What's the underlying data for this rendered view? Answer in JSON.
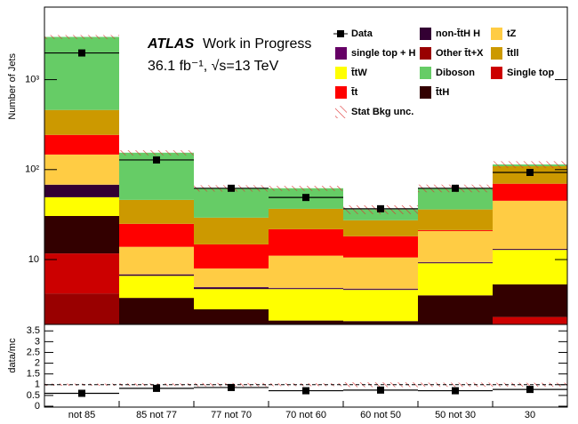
{
  "chart_data": {
    "type": "stacked-bar-log",
    "atlas_label": "ATLAS",
    "subtitle_label": "Work in Progress",
    "lumi_label": "36.1 fb⁻¹, √s=13 TeV",
    "y_label": "Number of Jets",
    "categories": [
      "not 85",
      "85 not 77",
      "77 not 70",
      "70 not 60",
      "60 not 50",
      "50 not 30",
      "30"
    ],
    "ylim": [
      1.9,
      6400
    ],
    "log_scale": true,
    "yticks": [
      10,
      {
        "value": 100,
        "label": "10²"
      },
      {
        "value": 1000,
        "label": "10³"
      }
    ],
    "series": [
      {
        "name": "Other t̄t+X",
        "color": "#990000",
        "values": [
          4.2,
          0.3,
          0.2,
          0.1,
          0.1,
          0.2,
          0.3
        ]
      },
      {
        "name": "Single top",
        "color": "#cc0000",
        "values": [
          7.5,
          0.5,
          0.3,
          0.1,
          0.1,
          0.3,
          2.0
        ]
      },
      {
        "name": "t̄tH",
        "color": "#330000",
        "values": [
          18.8,
          2.95,
          2.3,
          1.9,
          1.87,
          3.5,
          3.0
        ]
      },
      {
        "name": "t̄tW",
        "color": "#ffff00",
        "values": [
          18.8,
          2.85,
          1.9,
          2.6,
          2.53,
          5.1,
          7.5
        ]
      },
      {
        "name": "non-t̄tH H",
        "color": "#330033",
        "values": [
          18.6,
          0.2,
          0.2,
          0.1,
          0.1,
          0.2,
          0.3
        ]
      },
      {
        "name": "single top + H",
        "color": "#660066",
        "values": [
          0.1,
          0.05,
          0.05,
          0.05,
          0.05,
          0.05,
          0.05
        ]
      },
      {
        "name": "tZ",
        "color": "#ffcc44",
        "values": [
          79,
          7.0,
          3.0,
          6.2,
          5.8,
          11.4,
          31.9
        ]
      },
      {
        "name": "t̄t",
        "color": "#ff0000",
        "values": [
          96,
          11.1,
          6.8,
          10.7,
          7.6,
          0.5,
          24.6
        ]
      },
      {
        "name": "t̄tll",
        "color": "#cc9900",
        "values": [
          217,
          21.1,
          14.5,
          14.9,
          9.2,
          14.8,
          39.4
        ]
      },
      {
        "name": "Diboson",
        "color": "#66cc66",
        "values": [
          2525,
          108,
          32.8,
          25.4,
          8.7,
          26,
          5
        ]
      }
    ],
    "data": {
      "name": "Data",
      "color": "#000000",
      "values": [
        1980,
        128,
        62,
        49,
        36.7,
        62,
        93
      ]
    },
    "uncertainty": {
      "name": "Stat Bkg unc.",
      "color": "#dd3333",
      "values": [
        150,
        10,
        5,
        4,
        4,
        6,
        10
      ]
    },
    "ratio": {
      "y_label": "data/mc",
      "ylim": [
        0,
        3.8
      ],
      "yticks": [
        0,
        0.5,
        1,
        1.5,
        2,
        2.5,
        3,
        3.5
      ],
      "reference": 1,
      "values": [
        0.6,
        0.83,
        0.87,
        0.72,
        0.75,
        0.72,
        0.78
      ]
    }
  }
}
